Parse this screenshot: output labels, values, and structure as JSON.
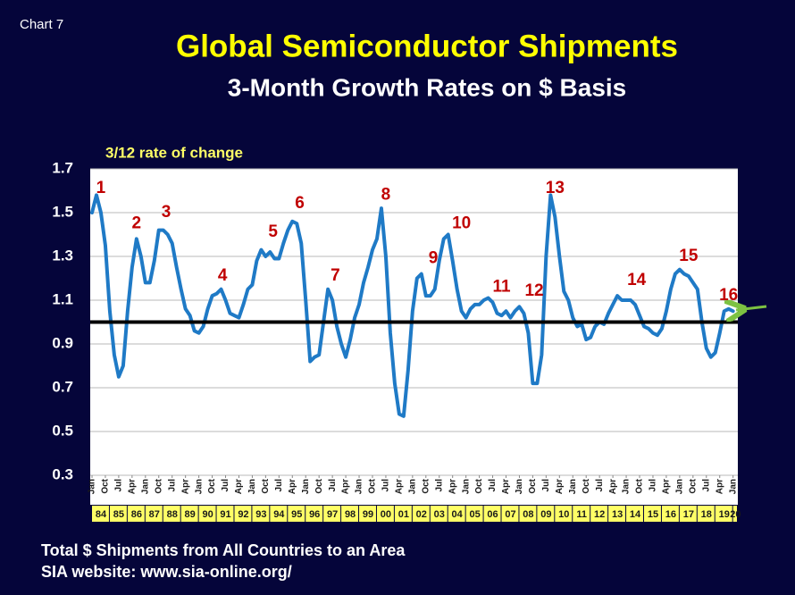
{
  "chart_label": "Chart 7",
  "chart_data": {
    "type": "line",
    "title": "Global Semiconductor Shipments",
    "subtitle": "3-Month Growth Rates on $ Basis",
    "y_label": "3/12 rate of change",
    "ylim": [
      0.3,
      1.7
    ],
    "yticks": [
      0.3,
      0.5,
      0.7,
      0.9,
      1.1,
      1.3,
      1.5,
      1.7
    ],
    "grid": true,
    "xlim": [
      "1984-01",
      "2020-03"
    ],
    "xticks": [
      {
        "value": "1984-01",
        "label": "Jan"
      },
      {
        "value": "1984-10",
        "label": "Oct"
      },
      {
        "value": "1985-07",
        "label": "Jul"
      },
      {
        "value": "1986-04",
        "label": "Apr"
      },
      {
        "value": "1987-01",
        "label": "Jan"
      },
      {
        "value": "1987-10",
        "label": "Oct"
      },
      {
        "value": "1988-07",
        "label": "Jul"
      },
      {
        "value": "1989-04",
        "label": "Apr"
      },
      {
        "value": "1990-01",
        "label": "Jan"
      },
      {
        "value": "1990-10",
        "label": "Oct"
      },
      {
        "value": "1991-07",
        "label": "Jul"
      },
      {
        "value": "1992-04",
        "label": "Apr"
      },
      {
        "value": "1993-01",
        "label": "Jan"
      },
      {
        "value": "1993-10",
        "label": "Oct"
      },
      {
        "value": "1994-07",
        "label": "Jul"
      },
      {
        "value": "1995-04",
        "label": "Apr"
      },
      {
        "value": "1996-01",
        "label": "Jan"
      },
      {
        "value": "1996-10",
        "label": "Oct"
      },
      {
        "value": "1997-07",
        "label": "Jul"
      },
      {
        "value": "1998-04",
        "label": "Apr"
      },
      {
        "value": "1999-01",
        "label": "Jan"
      },
      {
        "value": "1999-10",
        "label": "Oct"
      },
      {
        "value": "2000-07",
        "label": "Jul"
      },
      {
        "value": "2001-04",
        "label": "Apr"
      },
      {
        "value": "2002-01",
        "label": "Jan"
      },
      {
        "value": "2002-10",
        "label": "Oct"
      },
      {
        "value": "2003-07",
        "label": "Jul"
      },
      {
        "value": "2004-04",
        "label": "Apr"
      },
      {
        "value": "2005-01",
        "label": "Jan"
      },
      {
        "value": "2005-10",
        "label": "Oct"
      },
      {
        "value": "2006-07",
        "label": "Jul"
      },
      {
        "value": "2007-04",
        "label": "Apr"
      },
      {
        "value": "2008-01",
        "label": "Jan"
      },
      {
        "value": "2008-10",
        "label": "Oct"
      },
      {
        "value": "2009-07",
        "label": "Jul"
      },
      {
        "value": "2010-04",
        "label": "Apr"
      },
      {
        "value": "2011-01",
        "label": "Jan"
      },
      {
        "value": "2011-10",
        "label": "Oct"
      },
      {
        "value": "2012-07",
        "label": "Jul"
      },
      {
        "value": "2013-04",
        "label": "Apr"
      },
      {
        "value": "2014-01",
        "label": "Jan"
      },
      {
        "value": "2014-10",
        "label": "Oct"
      },
      {
        "value": "2015-07",
        "label": "Jul"
      },
      {
        "value": "2016-04",
        "label": "Apr"
      },
      {
        "value": "2017-01",
        "label": "Jan"
      },
      {
        "value": "2017-10",
        "label": "Oct"
      },
      {
        "value": "2018-07",
        "label": "Jul"
      },
      {
        "value": "2019-04",
        "label": "Apr"
      },
      {
        "value": "2020-01",
        "label": "Jan"
      }
    ],
    "xtick_years": [
      "84",
      "85",
      "86",
      "87",
      "88",
      "89",
      "90",
      "91",
      "92",
      "93",
      "94",
      "95",
      "96",
      "97",
      "98",
      "99",
      "00",
      "01",
      "02",
      "03",
      "04",
      "05",
      "06",
      "07",
      "08",
      "09",
      "10",
      "11",
      "12",
      "13",
      "14",
      "15",
      "16",
      "17",
      "18",
      "19",
      "20"
    ],
    "reference_line": {
      "value": 1.0,
      "color": "#000000"
    },
    "series": [
      {
        "name": "3/12 rate of change",
        "color": "#1f7ac6",
        "x": [
          "1984-01",
          "1984-04",
          "1984-07",
          "1984-10",
          "1985-01",
          "1985-04",
          "1985-07",
          "1985-10",
          "1986-01",
          "1986-04",
          "1986-07",
          "1986-10",
          "1987-01",
          "1987-04",
          "1987-07",
          "1987-10",
          "1988-01",
          "1988-04",
          "1988-07",
          "1988-10",
          "1989-01",
          "1989-04",
          "1989-07",
          "1989-10",
          "1990-01",
          "1990-04",
          "1990-07",
          "1990-10",
          "1991-01",
          "1991-04",
          "1991-07",
          "1991-10",
          "1992-01",
          "1992-04",
          "1992-07",
          "1992-10",
          "1993-01",
          "1993-04",
          "1993-07",
          "1993-10",
          "1994-01",
          "1994-04",
          "1994-07",
          "1994-10",
          "1995-01",
          "1995-04",
          "1995-07",
          "1995-10",
          "1996-01",
          "1996-04",
          "1996-07",
          "1996-10",
          "1997-01",
          "1997-04",
          "1997-07",
          "1997-10",
          "1998-01",
          "1998-04",
          "1998-07",
          "1998-10",
          "1999-01",
          "1999-04",
          "1999-07",
          "1999-10",
          "2000-01",
          "2000-04",
          "2000-07",
          "2000-10",
          "2001-01",
          "2001-04",
          "2001-07",
          "2001-10",
          "2002-01",
          "2002-04",
          "2002-07",
          "2002-10",
          "2003-01",
          "2003-04",
          "2003-07",
          "2003-10",
          "2004-01",
          "2004-04",
          "2004-07",
          "2004-10",
          "2005-01",
          "2005-04",
          "2005-07",
          "2005-10",
          "2006-01",
          "2006-04",
          "2006-07",
          "2006-10",
          "2007-01",
          "2007-04",
          "2007-07",
          "2007-10",
          "2008-01",
          "2008-04",
          "2008-07",
          "2008-10",
          "2009-01",
          "2009-04",
          "2009-07",
          "2009-10",
          "2010-01",
          "2010-04",
          "2010-07",
          "2010-10",
          "2011-01",
          "2011-04",
          "2011-07",
          "2011-10",
          "2012-01",
          "2012-04",
          "2012-07",
          "2012-10",
          "2013-01",
          "2013-04",
          "2013-07",
          "2013-10",
          "2014-01",
          "2014-04",
          "2014-07",
          "2014-10",
          "2015-01",
          "2015-04",
          "2015-07",
          "2015-10",
          "2016-01",
          "2016-04",
          "2016-07",
          "2016-10",
          "2017-01",
          "2017-04",
          "2017-07",
          "2017-10",
          "2018-01",
          "2018-04",
          "2018-07",
          "2018-10",
          "2019-01",
          "2019-04",
          "2019-07",
          "2019-10",
          "2020-01"
        ],
        "values": [
          1.5,
          1.58,
          1.5,
          1.35,
          1.05,
          0.85,
          0.75,
          0.8,
          1.05,
          1.25,
          1.38,
          1.3,
          1.18,
          1.18,
          1.28,
          1.42,
          1.42,
          1.4,
          1.36,
          1.25,
          1.15,
          1.06,
          1.03,
          0.96,
          0.95,
          0.98,
          1.06,
          1.12,
          1.13,
          1.15,
          1.1,
          1.04,
          1.03,
          1.02,
          1.08,
          1.15,
          1.17,
          1.28,
          1.33,
          1.3,
          1.32,
          1.29,
          1.29,
          1.36,
          1.42,
          1.46,
          1.45,
          1.36,
          1.1,
          0.82,
          0.84,
          0.85,
          1.0,
          1.15,
          1.1,
          0.98,
          0.9,
          0.84,
          0.92,
          1.02,
          1.08,
          1.18,
          1.25,
          1.33,
          1.38,
          1.52,
          1.3,
          0.95,
          0.72,
          0.58,
          0.57,
          0.78,
          1.05,
          1.2,
          1.22,
          1.12,
          1.12,
          1.15,
          1.28,
          1.38,
          1.4,
          1.28,
          1.15,
          1.05,
          1.02,
          1.06,
          1.08,
          1.08,
          1.1,
          1.11,
          1.09,
          1.04,
          1.03,
          1.05,
          1.02,
          1.05,
          1.07,
          1.04,
          0.95,
          0.72,
          0.72,
          0.85,
          1.3,
          1.58,
          1.48,
          1.3,
          1.14,
          1.1,
          1.02,
          0.98,
          0.99,
          0.92,
          0.93,
          0.98,
          1.0,
          0.99,
          1.04,
          1.08,
          1.12,
          1.1,
          1.1,
          1.1,
          1.08,
          1.03,
          0.98,
          0.97,
          0.95,
          0.94,
          0.97,
          1.05,
          1.15,
          1.22,
          1.24,
          1.22,
          1.21,
          1.18,
          1.15,
          1.0,
          0.88,
          0.84,
          0.86,
          0.95,
          1.05,
          1.06,
          1.05
        ]
      }
    ],
    "annotations": [
      {
        "text": "1",
        "x": "1984-07",
        "y": 1.61
      },
      {
        "text": "2",
        "x": "1986-07",
        "y": 1.45
      },
      {
        "text": "3",
        "x": "1988-03",
        "y": 1.5
      },
      {
        "text": "4",
        "x": "1991-05",
        "y": 1.21
      },
      {
        "text": "5",
        "x": "1994-03",
        "y": 1.41
      },
      {
        "text": "6",
        "x": "1995-09",
        "y": 1.54
      },
      {
        "text": "7",
        "x": "1997-09",
        "y": 1.21
      },
      {
        "text": "8",
        "x": "2000-07",
        "y": 1.58
      },
      {
        "text": "9",
        "x": "2003-03",
        "y": 1.29
      },
      {
        "text": "10",
        "x": "2004-10",
        "y": 1.45
      },
      {
        "text": "11",
        "x": "2007-01",
        "y": 1.16
      },
      {
        "text": "12",
        "x": "2008-11",
        "y": 1.14
      },
      {
        "text": "13",
        "x": "2010-01",
        "y": 1.61
      },
      {
        "text": "14",
        "x": "2014-08",
        "y": 1.19
      },
      {
        "text": "15",
        "x": "2017-07",
        "y": 1.3
      },
      {
        "text": "16",
        "x": "2019-10",
        "y": 1.12
      }
    ]
  },
  "footer": [
    "Total $ Shipments from All Countries to an Area",
    "SIA website:  www.sia-online.org/"
  ]
}
